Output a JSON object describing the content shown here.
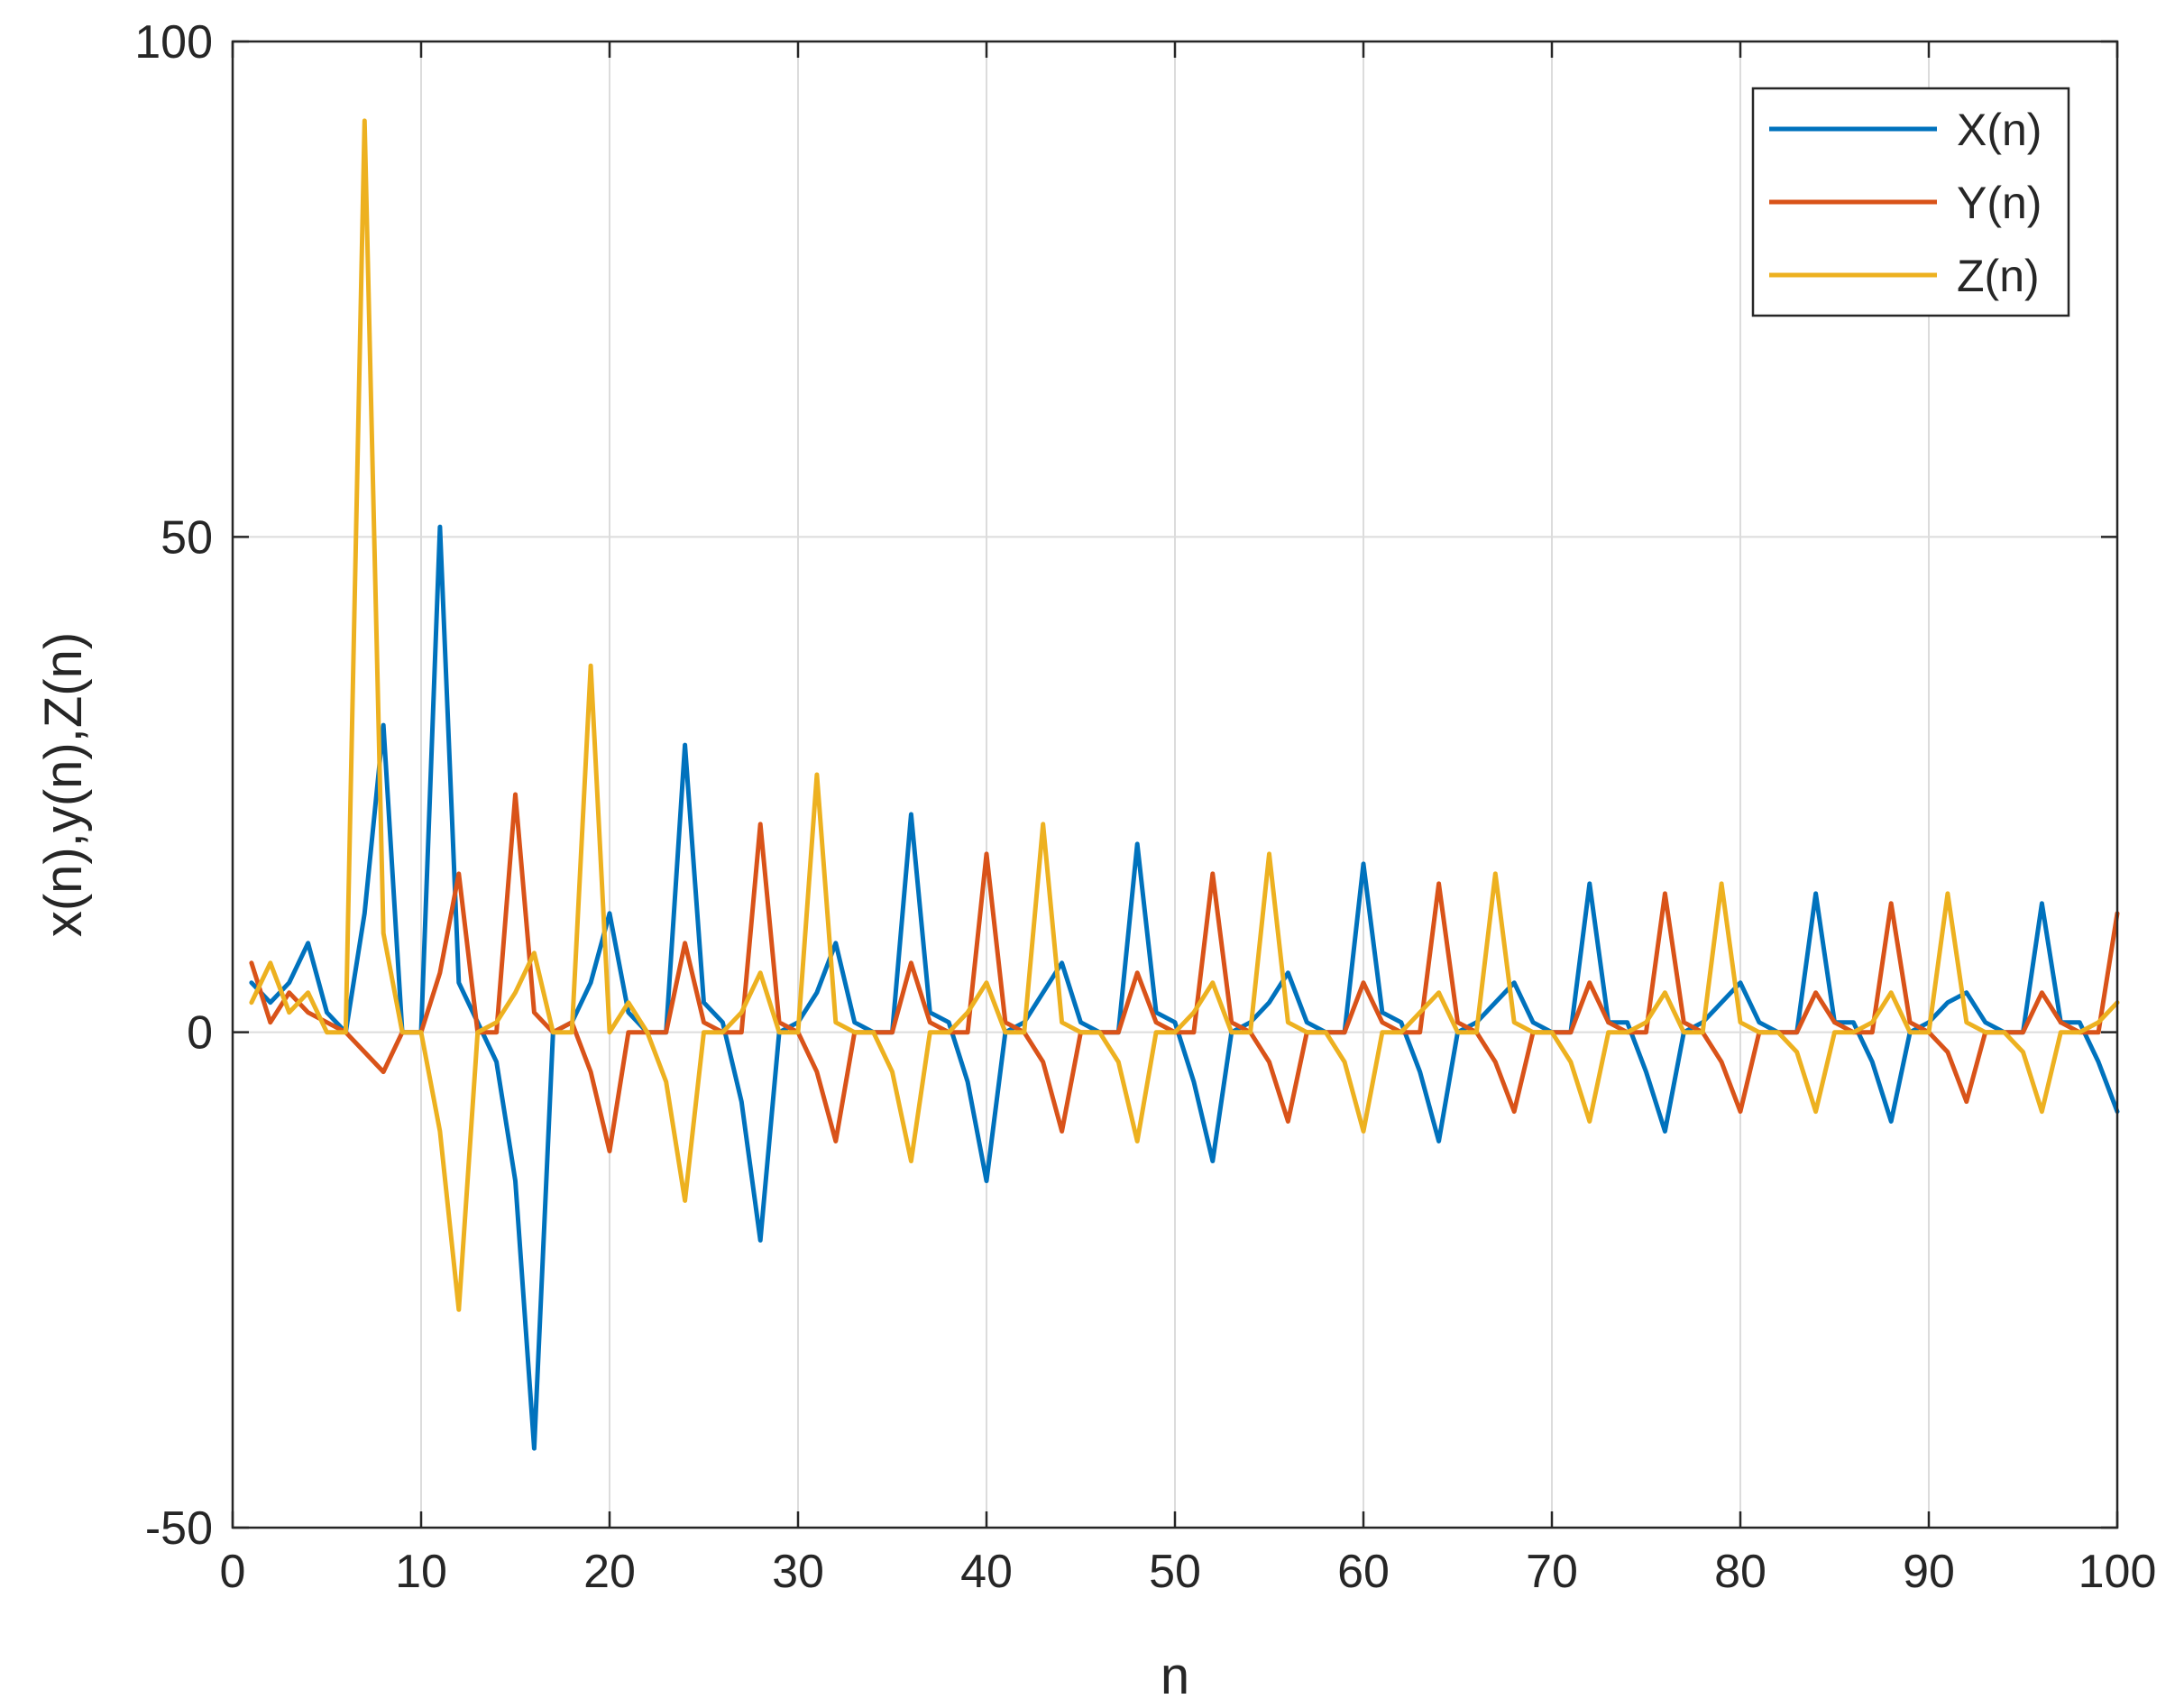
{
  "chart_data": {
    "type": "line",
    "xlabel": "n",
    "ylabel": "x(n),y(n),Z(n)",
    "xlim": [
      0,
      100
    ],
    "ylim": [
      -50,
      100
    ],
    "xticks": [
      "0",
      "10",
      "20",
      "30",
      "40",
      "50",
      "60",
      "70",
      "80",
      "90",
      "100"
    ],
    "yticks": [
      "-50",
      "0",
      "50",
      "100"
    ],
    "grid": true,
    "legend_position": "top-right",
    "x": [
      1,
      2,
      3,
      4,
      5,
      6,
      7,
      8,
      9,
      10,
      11,
      12,
      13,
      14,
      15,
      16,
      17,
      18,
      19,
      20,
      21,
      22,
      23,
      24,
      25,
      26,
      27,
      28,
      29,
      30,
      31,
      32,
      33,
      34,
      35,
      36,
      37,
      38,
      39,
      40,
      41,
      42,
      43,
      44,
      45,
      46,
      47,
      48,
      49,
      50,
      51,
      52,
      53,
      54,
      55,
      56,
      57,
      58,
      59,
      60,
      61,
      62,
      63,
      64,
      65,
      66,
      67,
      68,
      69,
      70,
      71,
      72,
      73,
      74,
      75,
      76,
      77,
      78,
      79,
      80,
      81,
      82,
      83,
      84,
      85,
      86,
      87,
      88,
      89,
      90,
      91,
      92,
      93,
      94,
      95,
      96,
      97,
      98,
      99,
      100
    ],
    "series": [
      {
        "name": "X(n)",
        "color": "#0072BD",
        "values": [
          5,
          3,
          5,
          9,
          2,
          0,
          12,
          31,
          0,
          0,
          51,
          5,
          1,
          -3,
          -15,
          -42,
          0,
          1,
          5,
          12,
          2,
          0,
          0,
          29,
          3,
          1,
          -7,
          -21,
          0,
          1,
          4,
          9,
          1,
          0,
          0,
          22,
          2,
          1,
          -5,
          -15,
          0,
          1,
          4,
          7,
          1,
          0,
          0,
          19,
          2,
          1,
          -5,
          -13,
          0,
          1,
          3,
          6,
          1,
          0,
          0,
          17,
          2,
          1,
          -4,
          -11,
          0,
          1,
          3,
          5,
          1,
          0,
          0,
          15,
          1,
          1,
          -4,
          -10,
          0,
          1,
          3,
          5,
          1,
          0,
          0,
          14,
          1,
          1,
          -3,
          -9,
          0,
          1,
          3,
          4,
          1,
          0,
          0,
          13,
          1,
          1,
          -3,
          -8
        ]
      },
      {
        "name": "Y(n)",
        "color": "#D95319",
        "values": [
          7,
          1,
          4,
          2,
          1,
          0,
          -2,
          -4,
          0,
          0,
          6,
          16,
          0,
          0,
          24,
          2,
          0,
          1,
          -4,
          -12,
          0,
          0,
          0,
          9,
          1,
          0,
          0,
          21,
          1,
          0,
          -4,
          -11,
          0,
          0,
          0,
          7,
          1,
          0,
          0,
          18,
          1,
          0,
          -3,
          -10,
          0,
          0,
          0,
          6,
          1,
          0,
          0,
          16,
          1,
          0,
          -3,
          -9,
          0,
          0,
          0,
          5,
          1,
          0,
          0,
          15,
          1,
          0,
          -3,
          -8,
          0,
          0,
          0,
          5,
          1,
          0,
          0,
          14,
          1,
          0,
          -3,
          -8,
          0,
          0,
          0,
          4,
          1,
          0,
          0,
          13,
          1,
          0,
          -2,
          -7,
          0,
          0,
          0,
          4,
          1,
          0,
          0,
          12
        ]
      },
      {
        "name": "Z(n)",
        "color": "#EDB120",
        "values": [
          3,
          7,
          2,
          4,
          0,
          0,
          92,
          10,
          0,
          0,
          -10,
          -28,
          0,
          1,
          4,
          8,
          0,
          0,
          37,
          0,
          3,
          0,
          -5,
          -17,
          0,
          0,
          2,
          6,
          0,
          0,
          26,
          1,
          0,
          0,
          -4,
          -13,
          0,
          0,
          2,
          5,
          0,
          0,
          21,
          1,
          0,
          0,
          -3,
          -11,
          0,
          0,
          2,
          5,
          0,
          0,
          18,
          1,
          0,
          0,
          -3,
          -10,
          0,
          0,
          2,
          4,
          0,
          0,
          16,
          1,
          0,
          0,
          -3,
          -9,
          0,
          0,
          1,
          4,
          0,
          0,
          15,
          1,
          0,
          0,
          -2,
          -8,
          0,
          0,
          1,
          4,
          0,
          0,
          14,
          1,
          0,
          0,
          -2,
          -8,
          0,
          0,
          1,
          3
        ]
      }
    ]
  }
}
